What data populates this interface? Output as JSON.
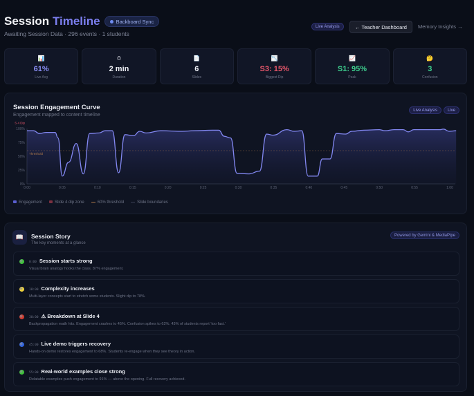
{
  "header": {
    "title_a": "Session",
    "title_b": "Timeline",
    "sync_badge": "Backboard Sync",
    "subtitle": "Awaiting Session Data · 296 events · 1 students",
    "live_analysis": "Live Analysis",
    "teacher_dashboard": "← Teacher Dashboard",
    "memory_insights": "Memory Insights →"
  },
  "stats": [
    {
      "icon": "📊",
      "value": "61%",
      "label": "Live Avg",
      "color": "#8b8ff5"
    },
    {
      "icon": "⏱",
      "value": "2 min",
      "label": "Duration",
      "color": "#eef0f6"
    },
    {
      "icon": "📄",
      "value": "6",
      "label": "Slides",
      "color": "#eef0f6"
    },
    {
      "icon": "📉",
      "value": "S3: 15%",
      "label": "Biggest Dip",
      "color": "#e5566a"
    },
    {
      "icon": "📈",
      "value": "S1: 95%",
      "label": "Peak",
      "color": "#3ecf8e"
    },
    {
      "icon": "🤔",
      "value": "3",
      "label": "Confusion",
      "color": "#3ecf8e"
    }
  ],
  "chart_card": {
    "title": "Session Engagement Curve",
    "subtitle": "Engagement mapped to content timeline",
    "pills": [
      "Live Analysis",
      "Live"
    ]
  },
  "chart_data": {
    "type": "area",
    "x_ticks": [
      "0:00",
      "0:05",
      "0:10",
      "0:15",
      "0:20",
      "0:25",
      "0:30",
      "0:35",
      "0:40",
      "0:45",
      "0:50",
      "0:55",
      "1:00"
    ],
    "y_ticks": [
      "0%",
      "25%",
      "50%",
      "75%",
      "100%"
    ],
    "ylim": [
      0,
      100
    ],
    "threshold": 60,
    "threshold_label": "Threshold",
    "dip_label": "S 4 Dip",
    "grid": false,
    "legend_position": "bottom-left",
    "colors": {
      "line": "#8287f0",
      "threshold": "#b07a4a",
      "dip": "#e5566a"
    },
    "series": [
      {
        "name": "Engagement",
        "x": [
          0,
          0.9,
          1.8,
          2.7,
          4.0,
          4.4,
          5.0,
          5.9,
          7.0,
          8.0,
          8.9,
          10.2,
          11.1,
          12.1,
          13.0,
          13.9,
          15.1,
          16.0,
          16.9,
          19.0,
          22.0,
          23.7,
          26.3,
          27.2,
          28.0,
          28.9,
          29.8,
          31.5,
          33.0,
          34.0,
          34.9,
          36.9,
          37.9,
          39.0,
          39.9,
          41.2,
          41.9,
          43.0,
          43.9,
          45.2,
          46.1,
          47.8,
          50.0,
          50.8,
          52.1,
          53.4,
          54.1,
          54.9,
          58.6,
          59.1,
          59.9,
          60.9
        ],
        "values": [
          96,
          96,
          91,
          93,
          93,
          83,
          14,
          39,
          73,
          18,
          91,
          92,
          96,
          96,
          20,
          89,
          87,
          95,
          92,
          96,
          95,
          96,
          97,
          97,
          86,
          83,
          19,
          18,
          23,
          90,
          88,
          98,
          95,
          96,
          14,
          14,
          45,
          45,
          91,
          90,
          95,
          97,
          98,
          96,
          98,
          98,
          94,
          98,
          98,
          99,
          95,
          96
        ]
      }
    ],
    "legend": [
      "Engagement",
      "Slide 4 dip zone",
      "60% threshold",
      "Slide boundaries"
    ]
  },
  "story": {
    "title": "Session Story",
    "subtitle": "The key moments at a glance",
    "powered": "Powered by Gemini & MediaPipe",
    "items": [
      {
        "time": "0:00",
        "title": "Session starts strong",
        "desc": "Visual brain analogy hooks the class. 87% engagement.",
        "color": "#3ec43a"
      },
      {
        "time": "18:00",
        "title": "Complexity increases",
        "desc": "Multi-layer concepts start to stretch some students. Slight dip to 78%.",
        "color": "#f2d43a"
      },
      {
        "time": "30:00",
        "title": "⚠ Breakdown at Slide 4",
        "desc": "Backpropagation math hits. Engagement crashes to 45%. Confusion spikes to 62%. 43% of students report 'too fast.'",
        "color": "#d43a2e"
      },
      {
        "time": "45:00",
        "title": "Live demo triggers recovery",
        "desc": "Hands-on demo restores engagement to 68%. Students re-engage when they see theory in action.",
        "color": "#2f63e0"
      },
      {
        "time": "55:00",
        "title": "Real-world examples close strong",
        "desc": "Relatable examples push engagement to 91% — above the opening. Full recovery achieved.",
        "color": "#3ec43a"
      }
    ]
  }
}
